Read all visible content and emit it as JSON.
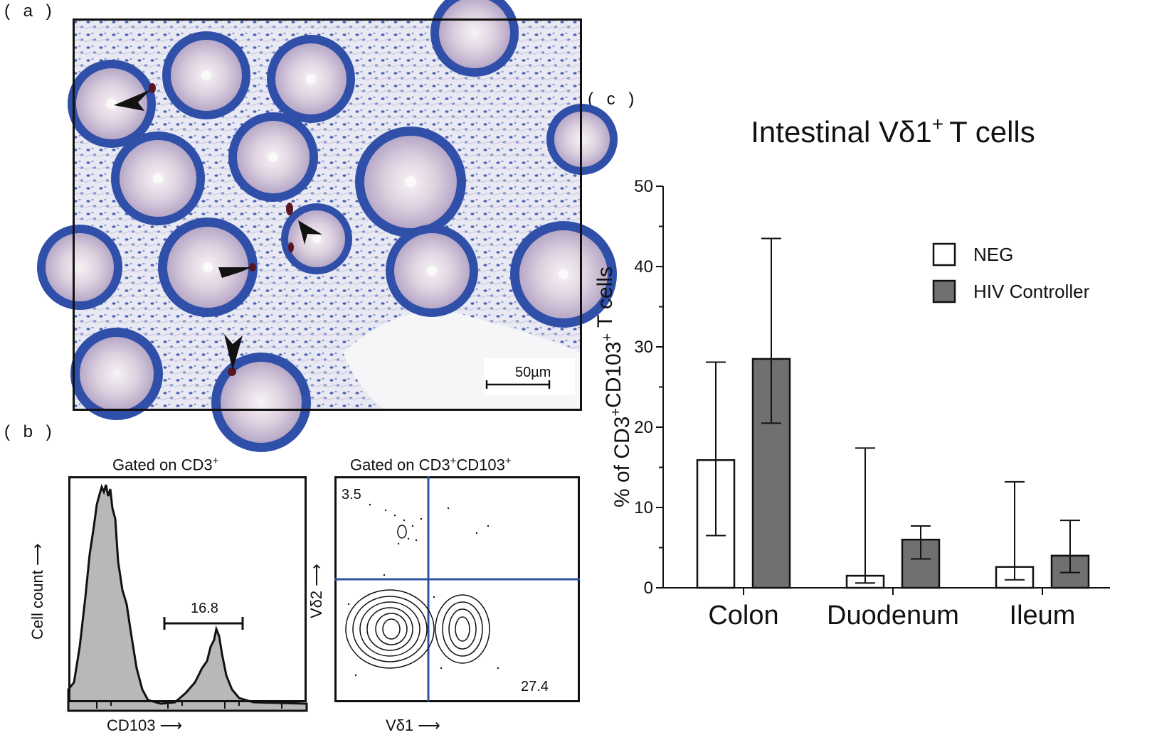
{
  "panels": {
    "a_label": "( a )",
    "b_label": "( b )",
    "c_label": "( c )"
  },
  "panel_a": {
    "scale_bar_label": "50µm"
  },
  "panel_b": {
    "hist_title": "Gated on CD3",
    "hist_title_sup": "+",
    "hist_xlabel": "CD103",
    "hist_ylabel": "Cell count",
    "hist_gate_value": "16.8",
    "contour_title_part1": "Gated on CD3",
    "contour_title_sup1": "+",
    "contour_title_part2": "CD103",
    "contour_title_sup2": "+",
    "contour_xlabel": "Vδ1",
    "contour_ylabel": "Vδ2",
    "contour_upper_left": "3.5",
    "contour_lower_right": "27.4"
  },
  "chart_data": {
    "type": "bar",
    "title": "Intestinal Vδ1",
    "title_sup": "+",
    "title_suffix": "T cells",
    "ylabel": "% of CD3+CD103+ T cells",
    "ylim": [
      0,
      50
    ],
    "yticks": [
      0,
      10,
      20,
      30,
      40,
      50
    ],
    "categories": [
      "Colon",
      "Duodenum",
      "Ileum"
    ],
    "series": [
      {
        "name": "NEG",
        "color": "#ffffff",
        "values": [
          15.9,
          1.5,
          2.6
        ],
        "err_low": [
          6.5,
          0.6,
          1.0
        ],
        "err_high": [
          28.1,
          17.4,
          13.2
        ]
      },
      {
        "name": "HIV Controller",
        "color": "#707070",
        "values": [
          28.5,
          6.0,
          4.0
        ],
        "err_low": [
          20.5,
          3.6,
          1.9
        ],
        "err_high": [
          43.5,
          7.7,
          8.4
        ]
      }
    ],
    "legend_position": "top-right"
  }
}
